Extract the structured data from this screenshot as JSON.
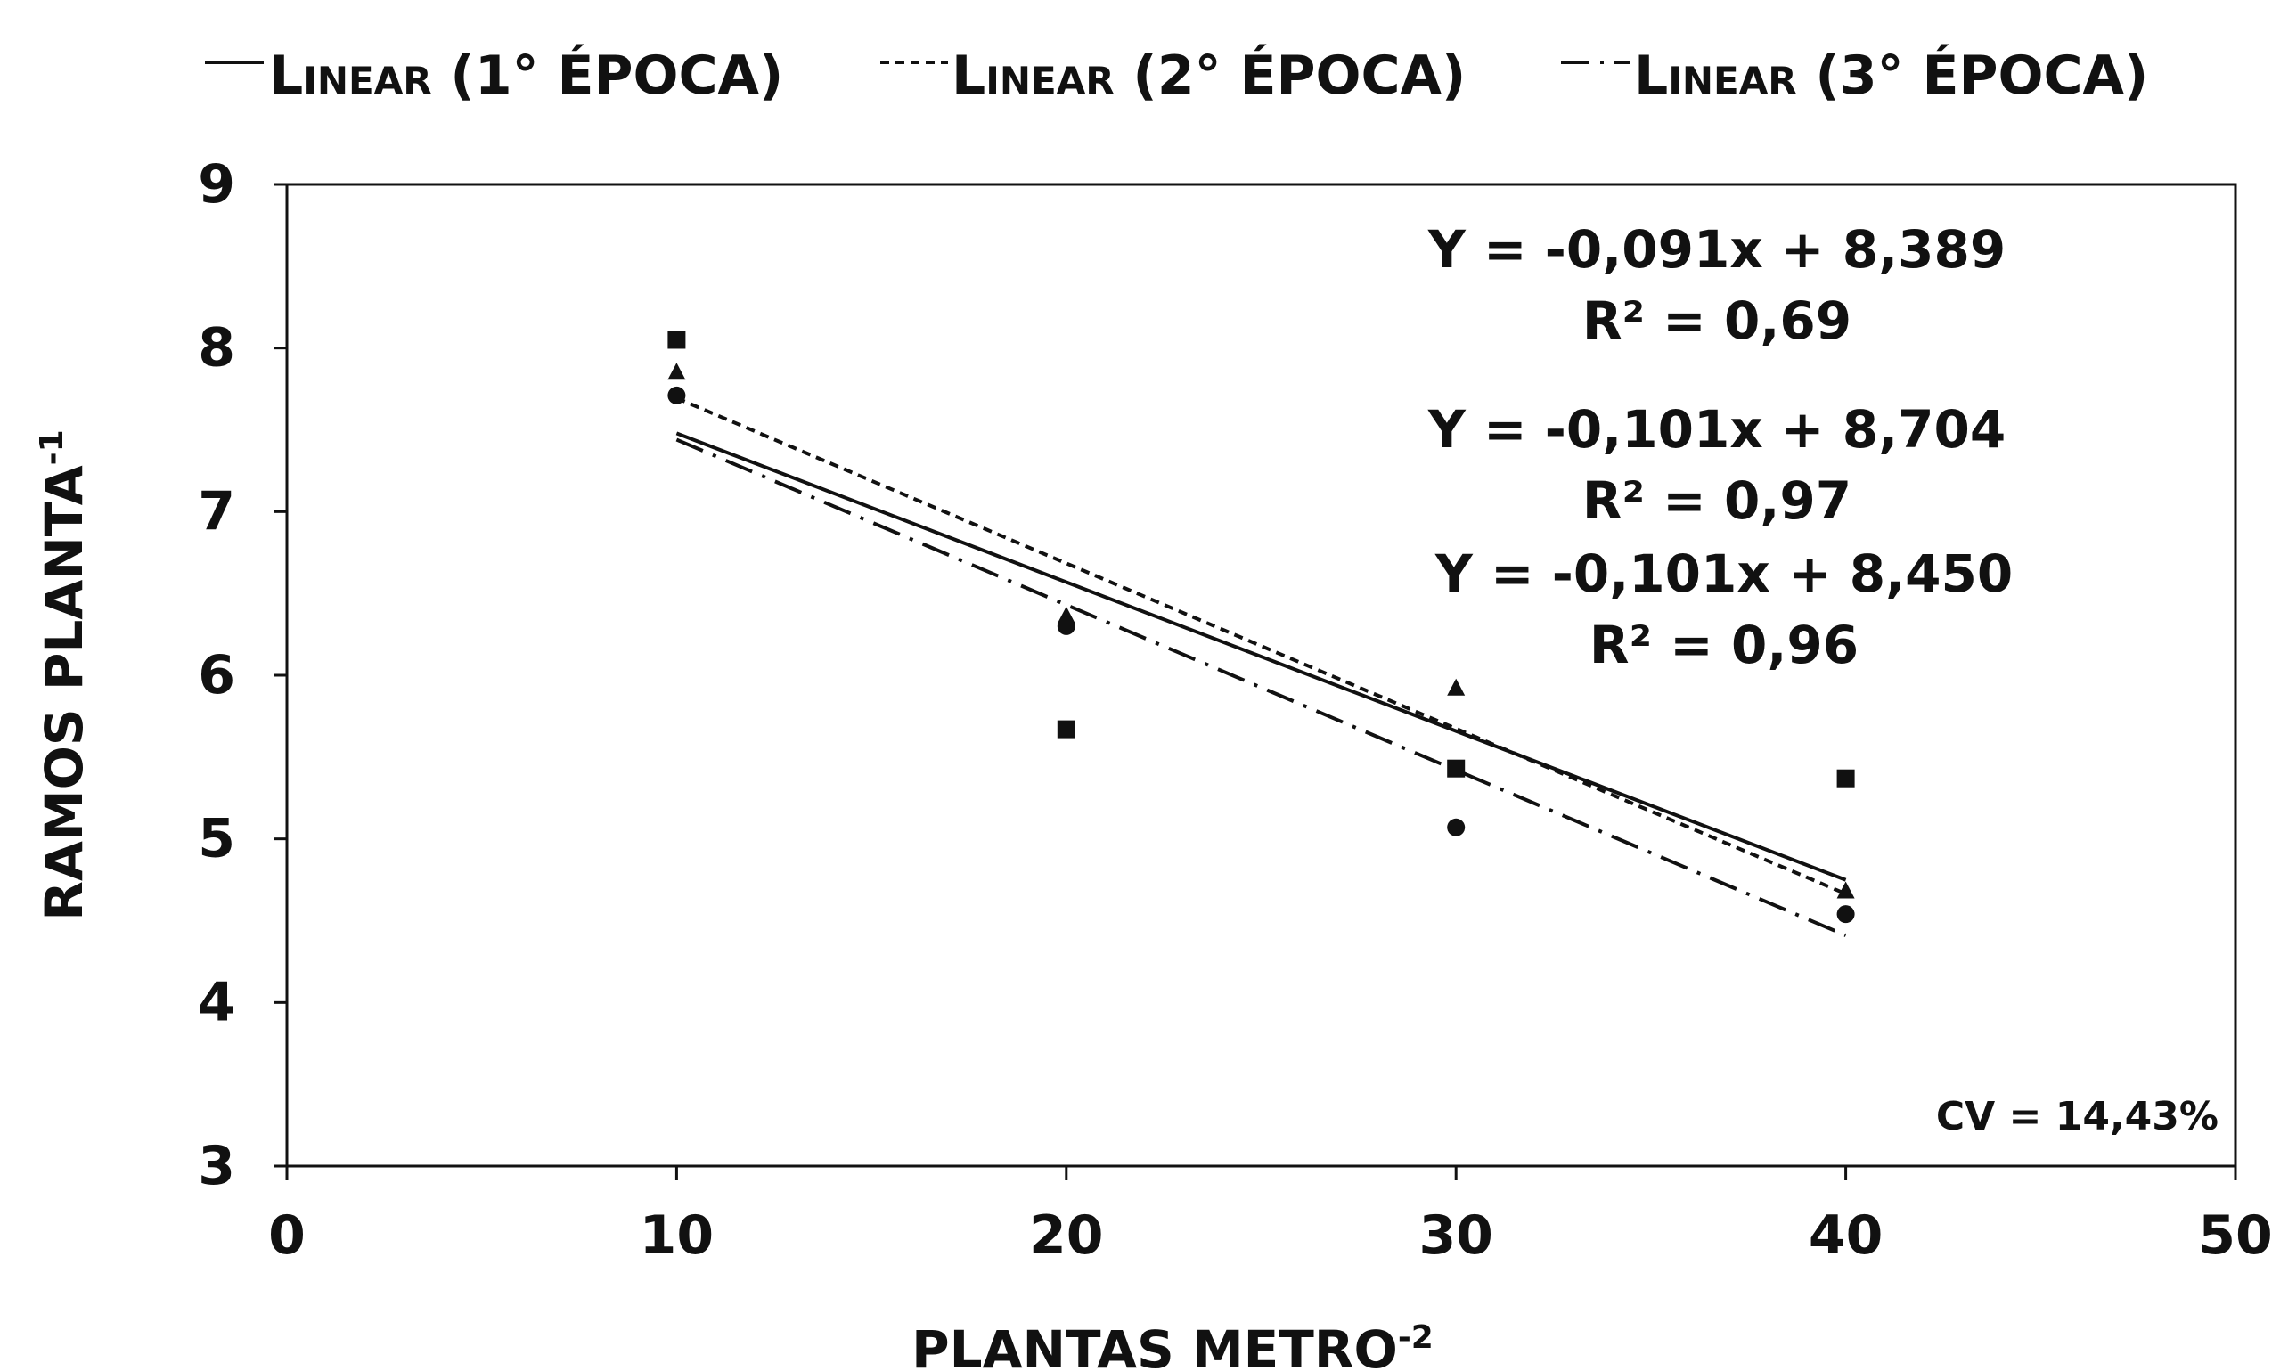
{
  "chart_data": {
    "type": "scatter",
    "title": "",
    "xlabel": "PLANTAS METRO",
    "xlabel_sup": "-2",
    "ylabel": "RAMOS PLANTA",
    "ylabel_sup": "-1",
    "xlim": [
      0,
      50
    ],
    "ylim": [
      3,
      9
    ],
    "xticks": [
      "0",
      "10",
      "20",
      "30",
      "40",
      "50"
    ],
    "yticks": [
      "3",
      "4",
      "5",
      "6",
      "7",
      "8",
      "9"
    ],
    "grid": false,
    "legend_position": "top",
    "legend": [
      {
        "label": "Linear (1° ÉPOCA)",
        "style": "solid"
      },
      {
        "label": "Linear (2° ÉPOCA)",
        "style": "dotted"
      },
      {
        "label": "Linear (3° ÉPOCA)",
        "style": "dashdot"
      }
    ],
    "series": [
      {
        "marker": "square",
        "x": [
          10,
          20,
          30,
          40
        ],
        "y": [
          8.05,
          5.67,
          5.43,
          5.37
        ]
      },
      {
        "marker": "triangle",
        "x": [
          10,
          20,
          30,
          40
        ],
        "y": [
          7.85,
          6.36,
          5.92,
          4.68
        ]
      },
      {
        "marker": "circle",
        "x": [
          10,
          20,
          30,
          40
        ],
        "y": [
          7.71,
          6.3,
          5.07,
          4.54
        ]
      }
    ],
    "trendlines": [
      {
        "style": "solid",
        "slope": -0.091,
        "intercept": 8.389,
        "x_range": [
          10,
          40
        ]
      },
      {
        "style": "dotted",
        "slope": -0.101,
        "intercept": 8.704,
        "x_range": [
          10,
          40
        ]
      },
      {
        "style": "dashdot",
        "slope": -0.101,
        "intercept": 8.45,
        "x_range": [
          10,
          40
        ]
      }
    ],
    "annotations": {
      "eq1": "Y = -0,091x + 8,389",
      "r1": "R² = 0,69",
      "eq2": "Y = -0,101x + 8,704",
      "r2": "R² = 0,97",
      "eq3": "Y = -0,101x + 8,450",
      "r3": "R² = 0,96",
      "cv": "CV = 14,43%"
    }
  }
}
